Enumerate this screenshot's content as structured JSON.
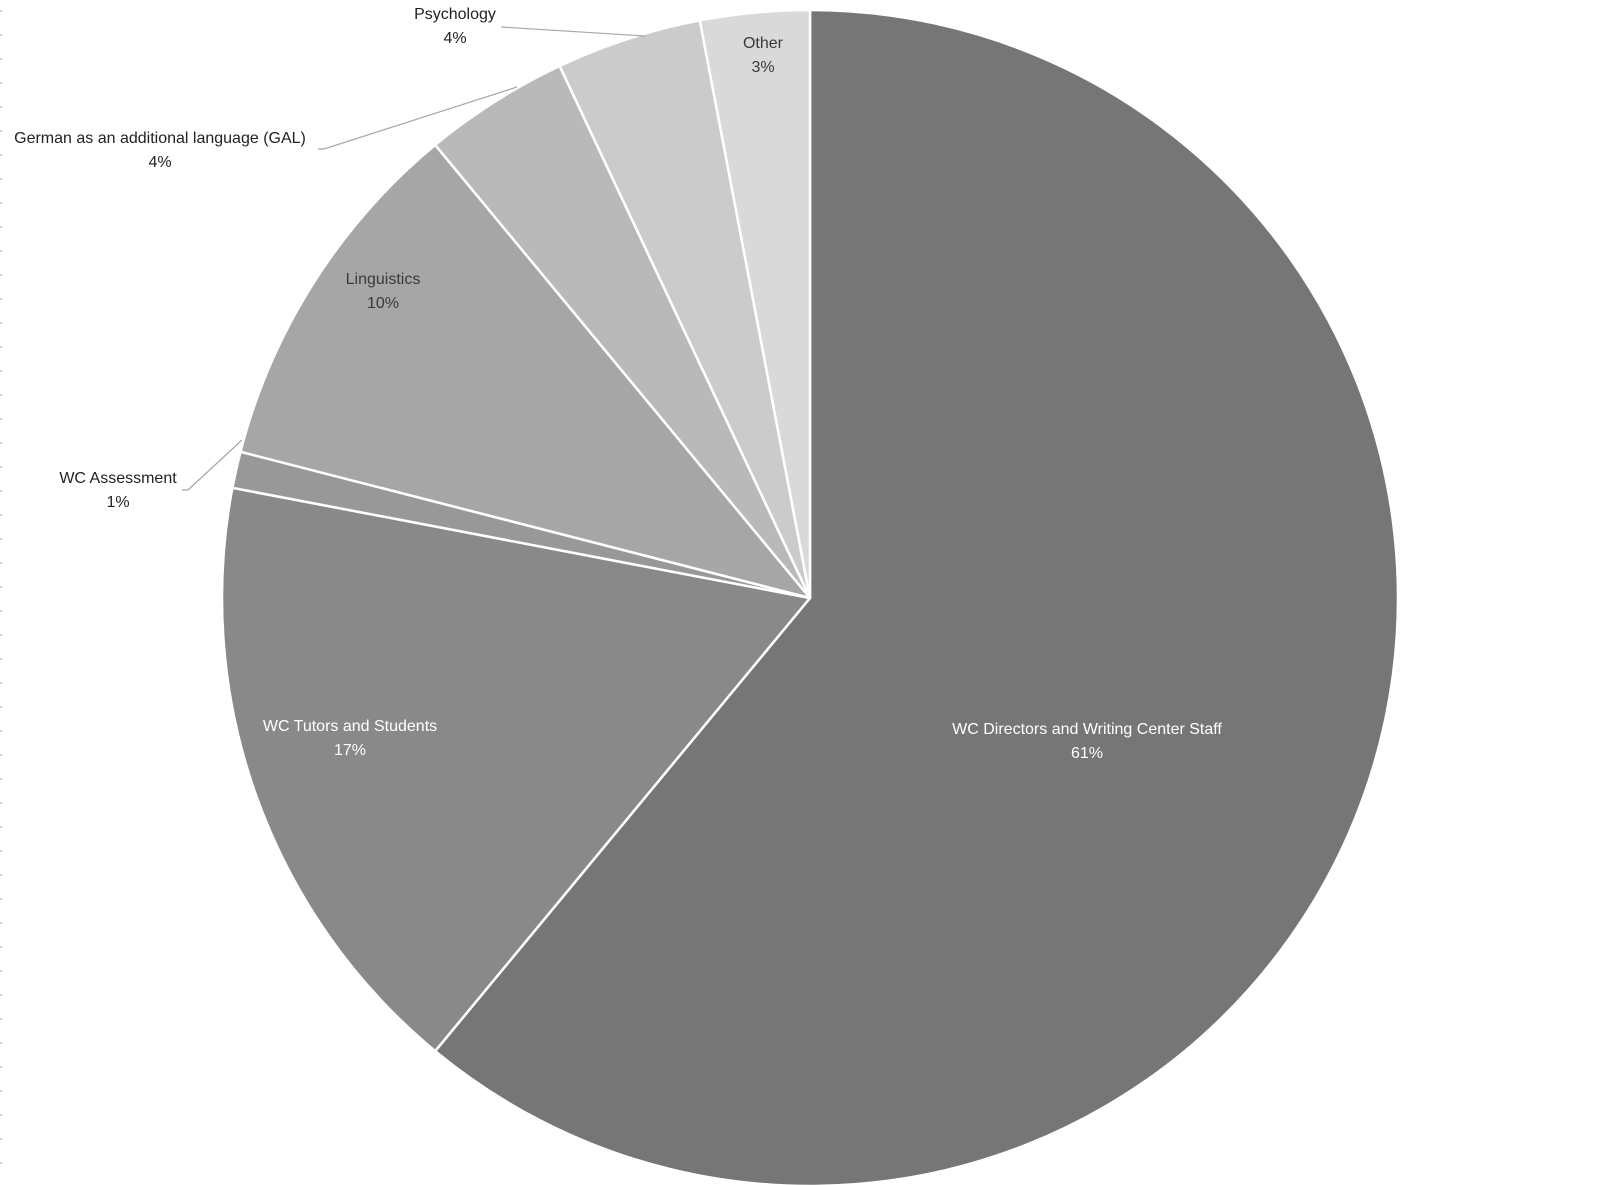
{
  "chart_data": {
    "type": "pie",
    "title": "",
    "legend": "none",
    "start_angle_deg": 0,
    "direction": "clockwise",
    "slices": [
      {
        "label": "WC Directors and Writing Center Staff",
        "value": 61,
        "value_label": "61%",
        "color": "#767676",
        "label_color": "#ffffff",
        "label_inside": true
      },
      {
        "label": "WC Tutors and Students",
        "value": 17,
        "value_label": "17%",
        "color": "#898989",
        "label_color": "#ffffff",
        "label_inside": true
      },
      {
        "label": "WC Assessment",
        "value": 1,
        "value_label": "1%",
        "color": "#989898",
        "label_color": "#222222",
        "label_inside": false
      },
      {
        "label": "Linguistics",
        "value": 10,
        "value_label": "10%",
        "color": "#a6a6a6",
        "label_color": "#3a3a3a",
        "label_inside": true
      },
      {
        "label": "German as an additional language (GAL)",
        "value": 4,
        "value_label": "4%",
        "color": "#b9b9b9",
        "label_color": "#222222",
        "label_inside": false
      },
      {
        "label": "Psychology",
        "value": 4,
        "value_label": "4%",
        "color": "#cbcbcb",
        "label_color": "#222222",
        "label_inside": false
      },
      {
        "label": "Other",
        "value": 3,
        "value_label": "3%",
        "color": "#d9d9d9",
        "label_color": "#3a3a3a",
        "label_inside": true
      }
    ]
  }
}
